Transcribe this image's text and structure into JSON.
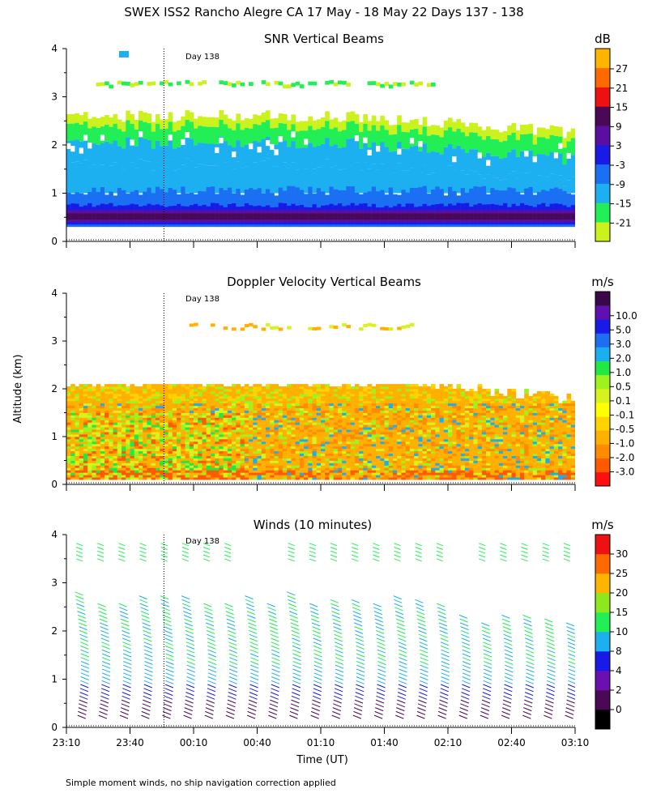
{
  "figure": {
    "title": "SWEX ISS2 Rancho Alegre CA  17 May - 18 May 22 Days 137 - 138",
    "ylabel": "Altitude (km)",
    "xlabel": "Time (UT)",
    "footnote": "Simple moment winds, no ship navigation correction applied",
    "day_marker": "Day 138",
    "x_ticks": [
      "23:10",
      "23:40",
      "00:10",
      "00:40",
      "01:10",
      "01:40",
      "02:10",
      "02:40",
      "03:10"
    ],
    "y_ticks": [
      "0",
      "1",
      "2",
      "3",
      "4"
    ]
  },
  "chart_data": [
    {
      "type": "heatmap",
      "title": "SNR Vertical Beams",
      "xlabel": "Time (UT)",
      "ylabel": "Altitude (km)",
      "ylim": [
        0,
        4
      ],
      "xlim": [
        "23:10",
        "03:10"
      ],
      "day_marker_time": "23:56",
      "colorbar_unit": "dB",
      "colorbar_ticks": [
        "27",
        "21",
        "15",
        "9",
        "3",
        "-3",
        "-9",
        "-15",
        "-21"
      ],
      "colorbar_colors": [
        "#ccf21e",
        "#22ee55",
        "#1db0f0",
        "#1b6ff2",
        "#1a1ae6",
        "#5a0fa0",
        "#4a0856",
        "#ee1111",
        "#ff6a00",
        "#ffb400"
      ],
      "layers": [
        {
          "dB_range": [
            -21,
            -15
          ],
          "color": "#ccf21e",
          "alt_km": [
            2.0,
            3.4
          ],
          "note": "weak, patchy"
        },
        {
          "dB_range": [
            -15,
            -9
          ],
          "color": "#22ee55",
          "alt_km": [
            1.8,
            2.5
          ]
        },
        {
          "dB_range": [
            -9,
            -3
          ],
          "color": "#1db0f0",
          "alt_km": [
            1.0,
            2.0
          ]
        },
        {
          "dB_range": [
            -3,
            3
          ],
          "color": "#1b6ff2",
          "alt_km": [
            0.3,
            1.3
          ]
        },
        {
          "dB_range": [
            3,
            9
          ],
          "color": "#5a0fa0",
          "alt_km": [
            0.35,
            0.8
          ]
        }
      ]
    },
    {
      "type": "heatmap",
      "title": "Doppler Velocity Vertical Beams",
      "xlabel": "Time (UT)",
      "ylabel": "Altitude (km)",
      "ylim": [
        0,
        4
      ],
      "xlim": [
        "23:10",
        "03:10"
      ],
      "colorbar_unit": "m/s",
      "colorbar_ticks": [
        "10.0",
        "5.0",
        "3.0",
        "2.0",
        "1.0",
        "0.5",
        "0.1",
        "-0.1",
        "-0.5",
        "-1.0",
        "-2.0",
        "-3.0"
      ],
      "colorbar_colors": [
        "#ff1010",
        "#ff5a00",
        "#ff8c00",
        "#ffb000",
        "#ffd200",
        "#ffff00",
        "#d8f21e",
        "#9ef21e",
        "#22e844",
        "#1ab0f0",
        "#1d6ef2",
        "#1a1ae6",
        "#6010b0",
        "#3a0848"
      ],
      "dominant": [
        {
          "ms_range": [
            -1.0,
            -0.1
          ],
          "color": "#ffb000",
          "alt_km": [
            0.1,
            2.1
          ]
        },
        {
          "ms_range": [
            0.1,
            1.0
          ],
          "color": "#9ef21e",
          "alt_km": [
            0.1,
            1.5
          ]
        }
      ]
    },
    {
      "type": "wind_barbs",
      "title": "Winds (10 minutes)",
      "xlabel": "Time (UT)",
      "ylabel": "Altitude (km)",
      "ylim": [
        0,
        4
      ],
      "xlim": [
        "23:10",
        "03:10"
      ],
      "colorbar_unit": "m/s",
      "colorbar_ticks": [
        "30",
        "25",
        "20",
        "15",
        "10",
        "8",
        "4",
        "2",
        "0"
      ],
      "colorbar_colors": [
        "#000000",
        "#4a0856",
        "#6a0fb0",
        "#1a1ae6",
        "#1db0f0",
        "#22ee55",
        "#8ee81e",
        "#ffb400",
        "#ff6a00",
        "#ee1111"
      ],
      "profile_times": [
        "23:10",
        "23:20",
        "23:30",
        "23:40",
        "23:50",
        "00:00",
        "00:10",
        "00:20",
        "00:30",
        "00:40",
        "00:50",
        "01:00",
        "01:10",
        "01:20",
        "01:30",
        "01:40",
        "01:50",
        "02:00",
        "02:10",
        "02:20",
        "02:30",
        "02:40",
        "02:50",
        "03:00"
      ]
    }
  ]
}
